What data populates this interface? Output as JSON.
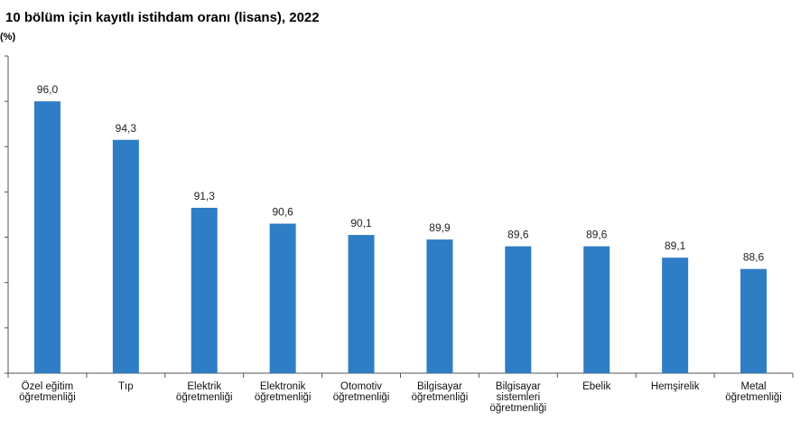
{
  "chart_data": {
    "type": "bar",
    "title": "10 bölüm için kayıtlı istihdam oranı (lisans), 2022",
    "ylabel": "(%)",
    "xlabel": "",
    "categories": [
      [
        "Özel eğitim",
        "öğretmenliği"
      ],
      [
        "Tıp"
      ],
      [
        "Elektrik",
        "öğretmenliği"
      ],
      [
        "Elektronik",
        "öğretmenliği"
      ],
      [
        "Otomotiv",
        "öğretmenliği"
      ],
      [
        "Bilgisayar",
        "öğretmenliği"
      ],
      [
        "Bilgisayar",
        "sistemleri",
        "öğretmenliği"
      ],
      [
        "Ebelik"
      ],
      [
        "Hemşirelik"
      ],
      [
        "Metal",
        "öğretmenliği"
      ]
    ],
    "values": [
      96.0,
      94.3,
      91.3,
      90.6,
      90.1,
      89.9,
      89.6,
      89.6,
      89.1,
      88.6
    ],
    "value_labels": [
      "96,0",
      "94,3",
      "91,3",
      "90,6",
      "90,1",
      "89,9",
      "89,6",
      "89,6",
      "89,1",
      "88,6"
    ],
    "ylim": [
      84,
      98
    ],
    "grid": false,
    "legend": "none",
    "bar_color": "#2e7dc5"
  }
}
